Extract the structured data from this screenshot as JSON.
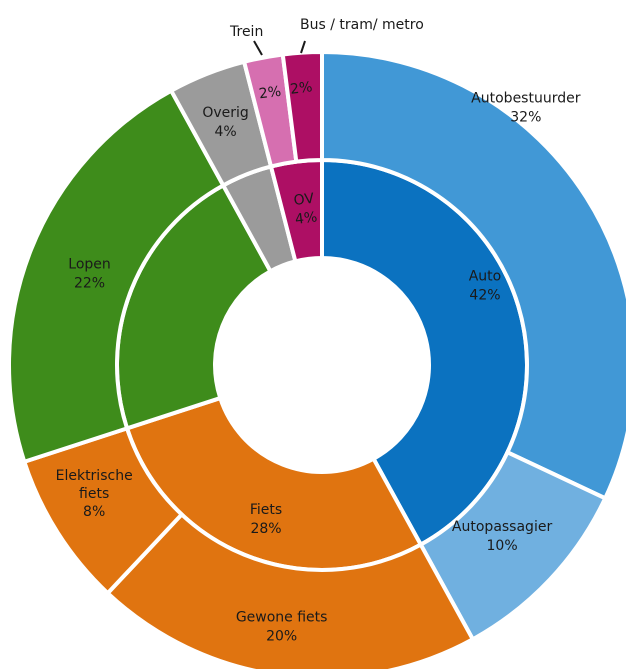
{
  "chart_data": {
    "type": "pie",
    "subtype": "sunburst",
    "title": "",
    "inner_ring": [
      {
        "label": "Auto",
        "value": 42,
        "value_label": "42%",
        "color": "#0b72c0"
      },
      {
        "label": "Fiets",
        "value": 28,
        "value_label": "28%",
        "color": "#e07410"
      },
      {
        "label": "Lopen",
        "value": 22,
        "value_label": "22%",
        "color": "#3e8c1b"
      },
      {
        "label": "Overig",
        "value": 4,
        "value_label": "4%",
        "color": "#9b9b9b"
      },
      {
        "label": "OV",
        "value": 4,
        "value_label": "4%",
        "color": "#ad0f64"
      }
    ],
    "outer_ring": [
      {
        "label": "Autobestuurder",
        "parent": "Auto",
        "value": 32,
        "value_label": "32%",
        "color": "#4198d6"
      },
      {
        "label": "Autopassagier",
        "parent": "Auto",
        "value": 10,
        "value_label": "10%",
        "color": "#70b0e0"
      },
      {
        "label": "Gewone fiets",
        "parent": "Fiets",
        "value": 20,
        "value_label": "20%",
        "color": "#e07410"
      },
      {
        "label": "Elektrische fiets",
        "parent": "Fiets",
        "value": 8,
        "value_label": "8%",
        "color": "#e07410"
      },
      {
        "label": "Lopen",
        "parent": "Lopen",
        "value": 22,
        "value_label": "22%",
        "color": "#3e8c1b"
      },
      {
        "label": "Overig",
        "parent": "Overig",
        "value": 4,
        "value_label": "4%",
        "color": "#9b9b9b"
      },
      {
        "label": "Trein",
        "parent": "OV",
        "value": 2,
        "value_label": "2%",
        "color": "#d66fb0"
      },
      {
        "label": "Bus / tram/ metro",
        "parent": "OV",
        "value": 2,
        "value_label": "2%",
        "color": "#ad0f64"
      }
    ]
  }
}
